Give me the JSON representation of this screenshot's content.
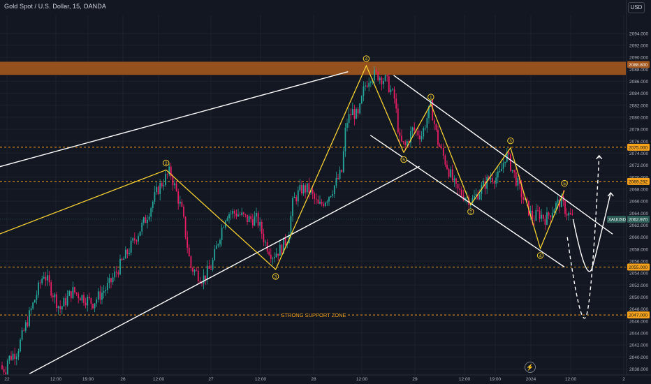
{
  "header": {
    "title": "Gold Spot / U.S. Dollar, 15, OANDA",
    "currency": "USD"
  },
  "colors": {
    "background": "#131722",
    "grid": "#1e222d",
    "up": "#26a69a",
    "down": "#e91e63",
    "wave": "#f5d033",
    "channel": "#ffffff",
    "resistance_zone": "#a0561d",
    "level_line": "#f7a21b",
    "price_tag": "#2d5f58",
    "axis_text": "#b2b5be"
  },
  "icons": {
    "replay": "bolt-icon"
  },
  "chart_data": {
    "type": "candlestick",
    "symbol": "XAUUSD",
    "last_price": 2062.97,
    "last_price_label": "2062.970",
    "y_axis": {
      "range": [
        2037,
        2097
      ],
      "ticks": [
        2038,
        2040,
        2042,
        2044,
        2046,
        2048,
        2050,
        2052,
        2054,
        2056,
        2058,
        2060,
        2062,
        2064,
        2066,
        2068,
        2070,
        2072,
        2074,
        2076,
        2078,
        2080,
        2082,
        2084,
        2086,
        2088,
        2090,
        2092,
        2094
      ]
    },
    "x_axis": {
      "ticks": [
        "22",
        "12:00",
        "19:00",
        "26",
        "12:00",
        "27",
        "12:00",
        "28",
        "12:00",
        "29",
        "12:00",
        "19:00",
        "2024",
        "12:00",
        "2"
      ]
    },
    "resistance_zone": {
      "from": 2087.3,
      "to": 2088.8,
      "label": "2088.800"
    },
    "levels": [
      {
        "price": 2075.0,
        "label": "2075.000"
      },
      {
        "price": 2069.29,
        "label": "2069.292"
      },
      {
        "price": 2055.0,
        "label": "2055.000"
      },
      {
        "price": 2047.0,
        "label": "2047.000",
        "note": "STRONG SUPPORT ZONE"
      }
    ],
    "elliott_waves": [
      {
        "points": [
          [
            -1,
            2047.9
          ],
          [
            0.78,
            2071.2
          ],
          [
            1.63,
            2054.6
          ],
          [
            2.52,
            2088.6
          ],
          [
            2.89,
            2074.1
          ]
        ],
        "labels": [
          "2",
          "3",
          "4",
          "5"
        ]
      },
      {
        "points": [
          [
            2.89,
            2074.1
          ],
          [
            3.14,
            2082.2
          ],
          [
            3.49,
            2065.4
          ],
          [
            3.84,
            2074.9
          ],
          [
            4.12,
            2058.1
          ],
          [
            4.37,
            2067.8
          ]
        ],
        "labels": [
          "1",
          "2",
          "3",
          "4",
          "5"
        ]
      }
    ],
    "channels": [
      {
        "lines": [
          [
            [
              -1,
              2062.8
            ],
            [
              2.34,
              2087.6
            ]
          ],
          [
            [
              0.11,
              2037.2
            ],
            [
              3.04,
              2071.8
            ]
          ]
        ]
      },
      {
        "lines": [
          [
            [
              2.79,
              2087.0
            ],
            [
              4.87,
              2060.5
            ]
          ],
          [
            [
              2.56,
              2077.0
            ],
            [
              4.37,
              2055.0
            ]
          ]
        ]
      }
    ],
    "projections": [
      {
        "style": "solid",
        "points": [
          [
            4.46,
            2063.0
          ],
          [
            4.66,
            2055.0
          ],
          [
            4.85,
            2067.4
          ]
        ]
      },
      {
        "style": "dashed",
        "points": [
          [
            4.4,
            2060.0
          ],
          [
            4.6,
            2047.0
          ],
          [
            4.73,
            2073.6
          ]
        ]
      }
    ]
  }
}
